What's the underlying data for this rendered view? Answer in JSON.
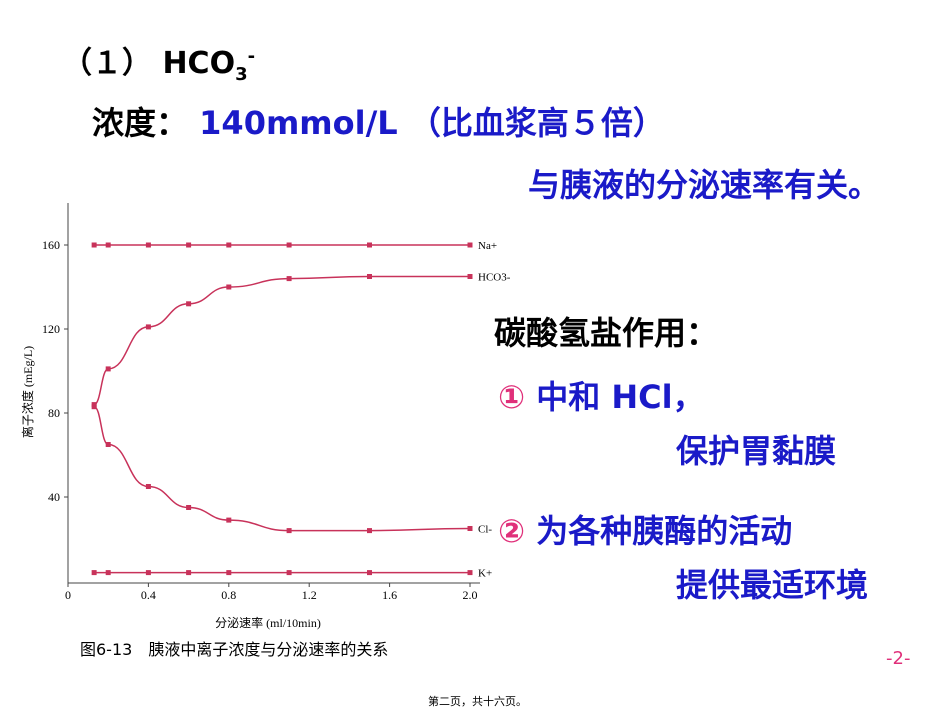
{
  "slide": {
    "heading": {
      "prefix": "（１） HCO",
      "sub": "3",
      "sup": "-"
    },
    "line1": {
      "label": "浓度：",
      "text": "140mmol/L （比血浆高５倍）"
    },
    "line2": "与胰液的分泌速率有关。",
    "section": "碳酸氢盐作用：",
    "items": [
      {
        "marker": "①",
        "text": "中和 HCl，",
        "cont": "保护胃黏膜"
      },
      {
        "marker": "②",
        "text": "为各种胰酶的活动",
        "cont": "提供最适环境"
      }
    ],
    "page_number": "-2-",
    "footer": "第二页，共十六页。"
  },
  "chart_data": {
    "type": "line",
    "caption": "图6-13　胰液中离子浓度与分泌速率的关系",
    "x_label": "分泌速率 (ml/10min)",
    "y_label": "离子浓度 (mEg/L)",
    "xlim": [
      0,
      2
    ],
    "ylim": [
      0,
      180
    ],
    "xticks": [
      0,
      0.4,
      0.8,
      1.2,
      1.6,
      {
        "value": 2,
        "label": "2.0"
      }
    ],
    "yticks": [
      40,
      80,
      120,
      160
    ],
    "x": [
      0.13,
      0.2,
      0.4,
      0.6,
      0.8,
      1.1,
      1.5,
      2
    ],
    "series": [
      {
        "name": "Na+",
        "color": "#c8325a",
        "values": [
          160,
          160,
          160,
          160,
          160,
          160,
          160,
          160
        ]
      },
      {
        "name": "HCO3-",
        "color": "#c8325a",
        "values": [
          84,
          101,
          121,
          132,
          140,
          144,
          145,
          145
        ]
      },
      {
        "name": "Cl-",
        "color": "#c8325a",
        "values": [
          83,
          65,
          45,
          35,
          29,
          24,
          24,
          25
        ]
      },
      {
        "name": "K+",
        "color": "#c8325a",
        "values": [
          4,
          4,
          4,
          4,
          4,
          4,
          4,
          4
        ]
      }
    ]
  }
}
